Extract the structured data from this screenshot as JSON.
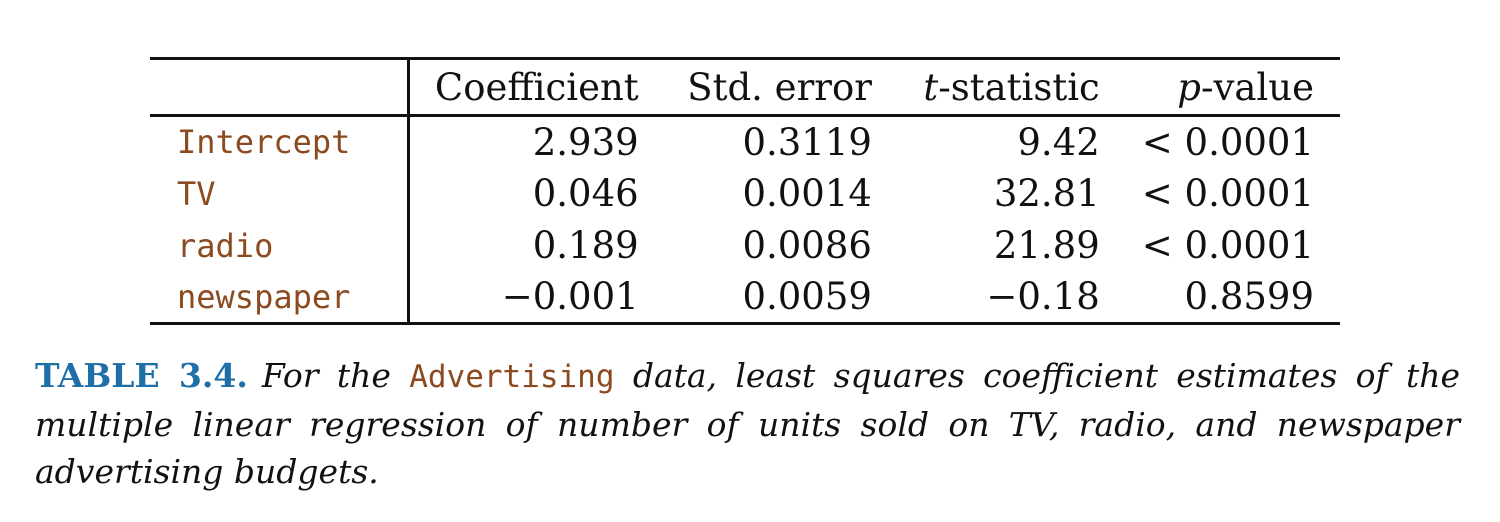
{
  "table": {
    "headers": {
      "col1": "Coefficient",
      "col2": "Std. error",
      "col3_italic": "t",
      "col3_rest": "-statistic",
      "col4_italic": "p",
      "col4_rest": "-value"
    },
    "rows": [
      {
        "variable": "Intercept",
        "coefficient": "2.939",
        "std_error": "0.3119",
        "t_statistic": "9.42",
        "p_value": "< 0.0001"
      },
      {
        "variable": "TV",
        "coefficient": "0.046",
        "std_error": "0.0014",
        "t_statistic": "32.81",
        "p_value": "< 0.0001"
      },
      {
        "variable": "radio",
        "coefficient": "0.189",
        "std_error": "0.0086",
        "t_statistic": "21.89",
        "p_value": "< 0.0001"
      },
      {
        "variable": "newspaper",
        "coefficient": "−0.001",
        "std_error": "0.0059",
        "t_statistic": "−0.18",
        "p_value": "0.8599"
      }
    ]
  },
  "caption": {
    "label": "TABLE 3.4.",
    "text_before": "For the ",
    "dataset": "Advertising",
    "text_after": " data, least squares coefficient estimates of the multiple linear regression of number of units sold on TV, radio, and newspaper advertising budgets."
  },
  "colors": {
    "caption_label": "#1e6fa8",
    "variable_names": "#8b4a1f"
  }
}
